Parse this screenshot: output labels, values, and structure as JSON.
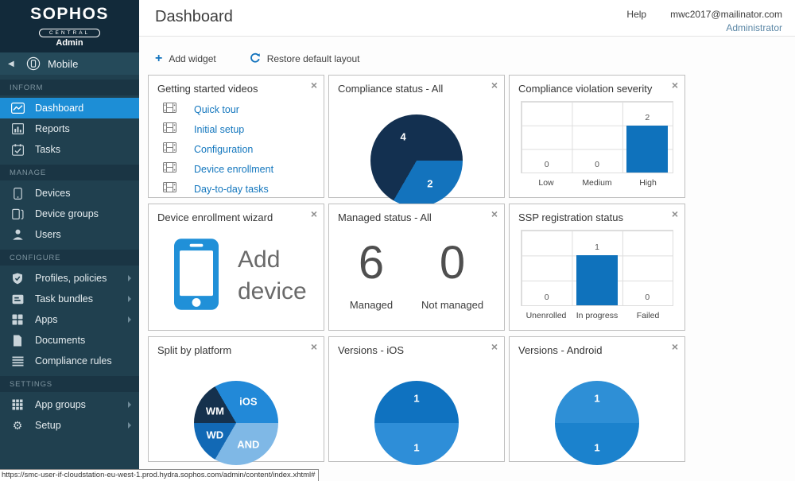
{
  "brand": {
    "name": "SOPHOS",
    "sub": "CENTRAL",
    "tier": "Admin",
    "product": "Mobile"
  },
  "icons": {
    "close": "×",
    "plus": "+",
    "back": "◀",
    "gear": "⚙"
  },
  "header": {
    "title": "Dashboard",
    "help_label": "Help",
    "user_email": "mwc2017@mailinator.com",
    "user_role": "Administrator"
  },
  "toolbar": {
    "add_widget_label": "Add widget",
    "restore_label": "Restore default layout"
  },
  "sidebar": {
    "sections": [
      {
        "label": "INFORM",
        "items": [
          {
            "label": "Dashboard",
            "icon": "dashboard-icon",
            "active": true
          },
          {
            "label": "Reports",
            "icon": "reports-icon"
          },
          {
            "label": "Tasks",
            "icon": "tasks-icon"
          }
        ]
      },
      {
        "label": "MANAGE",
        "items": [
          {
            "label": "Devices",
            "icon": "device-icon"
          },
          {
            "label": "Device groups",
            "icon": "device-groups-icon"
          },
          {
            "label": "Users",
            "icon": "user-icon"
          }
        ]
      },
      {
        "label": "CONFIGURE",
        "items": [
          {
            "label": "Profiles, policies",
            "icon": "shield-icon",
            "expandable": true
          },
          {
            "label": "Task bundles",
            "icon": "bundle-icon",
            "expandable": true
          },
          {
            "label": "Apps",
            "icon": "apps-icon",
            "expandable": true
          },
          {
            "label": "Documents",
            "icon": "document-icon"
          },
          {
            "label": "Compliance rules",
            "icon": "list-icon"
          }
        ]
      },
      {
        "label": "SETTINGS",
        "items": [
          {
            "label": "App groups",
            "icon": "app-groups-icon",
            "expandable": true
          },
          {
            "label": "Setup",
            "icon": "gear-icon",
            "expandable": true
          }
        ]
      }
    ]
  },
  "widgets": {
    "videos": {
      "title": "Getting started videos",
      "items": [
        {
          "label": "Quick tour"
        },
        {
          "label": "Initial setup"
        },
        {
          "label": "Configuration"
        },
        {
          "label": "Device enrollment"
        },
        {
          "label": "Day-to-day tasks"
        }
      ]
    },
    "compliance_status": {
      "title": "Compliance status - All"
    },
    "violation_severity": {
      "title": "Compliance violation severity"
    },
    "enrollment_wizard": {
      "title": "Device enrollment wizard",
      "action_label": "Add device"
    },
    "managed_status": {
      "title": "Managed status - All",
      "stats": [
        {
          "value": "6",
          "label": "Managed"
        },
        {
          "value": "0",
          "label": "Not managed"
        }
      ]
    },
    "ssp_status": {
      "title": "SSP registration status"
    },
    "split_platform": {
      "title": "Split by platform"
    },
    "versions_ios": {
      "title": "Versions - iOS"
    },
    "versions_android": {
      "title": "Versions - Android"
    }
  },
  "chart_data": [
    {
      "id": "compliance_status",
      "type": "pie",
      "title": "Compliance status - All",
      "start_deg": 210,
      "slices": [
        {
          "label": "4",
          "value": 4,
          "color": "#133050"
        },
        {
          "label": "2",
          "value": 2,
          "color": "#1373bd"
        }
      ]
    },
    {
      "id": "violation_severity",
      "type": "bar",
      "title": "Compliance violation severity",
      "categories": [
        "Low",
        "Medium",
        "High"
      ],
      "values": [
        0,
        0,
        2
      ],
      "ylim": [
        0,
        3
      ],
      "bar_color": "#0f72bc",
      "grid": true
    },
    {
      "id": "ssp_status",
      "type": "bar",
      "title": "SSP registration status",
      "categories": [
        "Unenrolled",
        "In progress",
        "Failed"
      ],
      "values": [
        0,
        1,
        0
      ],
      "ylim": [
        0,
        1.5
      ],
      "bar_color": "#0f72bc",
      "grid": true
    },
    {
      "id": "split_platform",
      "type": "pie",
      "title": "Split by platform",
      "start_deg": 330,
      "slices": [
        {
          "label": "iOS",
          "value": 2,
          "color": "#2289d8"
        },
        {
          "label": "AND",
          "value": 2,
          "color": "#7fb8e6"
        },
        {
          "label": "WD",
          "value": 1,
          "color": "#1269b5"
        },
        {
          "label": "WM",
          "value": 1,
          "color": "#15314d"
        }
      ]
    },
    {
      "id": "versions_ios",
      "type": "pie",
      "title": "Versions - iOS",
      "start_deg": 270,
      "slices": [
        {
          "label": "1",
          "value": 1,
          "color": "#0f72c0"
        },
        {
          "label": "1",
          "value": 1,
          "color": "#2e8ed8"
        }
      ]
    },
    {
      "id": "versions_android",
      "type": "pie",
      "title": "Versions - Android",
      "start_deg": 270,
      "slices": [
        {
          "label": "1",
          "value": 1,
          "color": "#2e8fd6"
        },
        {
          "label": "1",
          "value": 1,
          "color": "#1b82cd"
        }
      ]
    }
  ],
  "statusbar": {
    "url": "https://smc-user-if-cloudstation-eu-west-1.prod.hydra.sophos.com/admin/content/index.xhtml#"
  }
}
